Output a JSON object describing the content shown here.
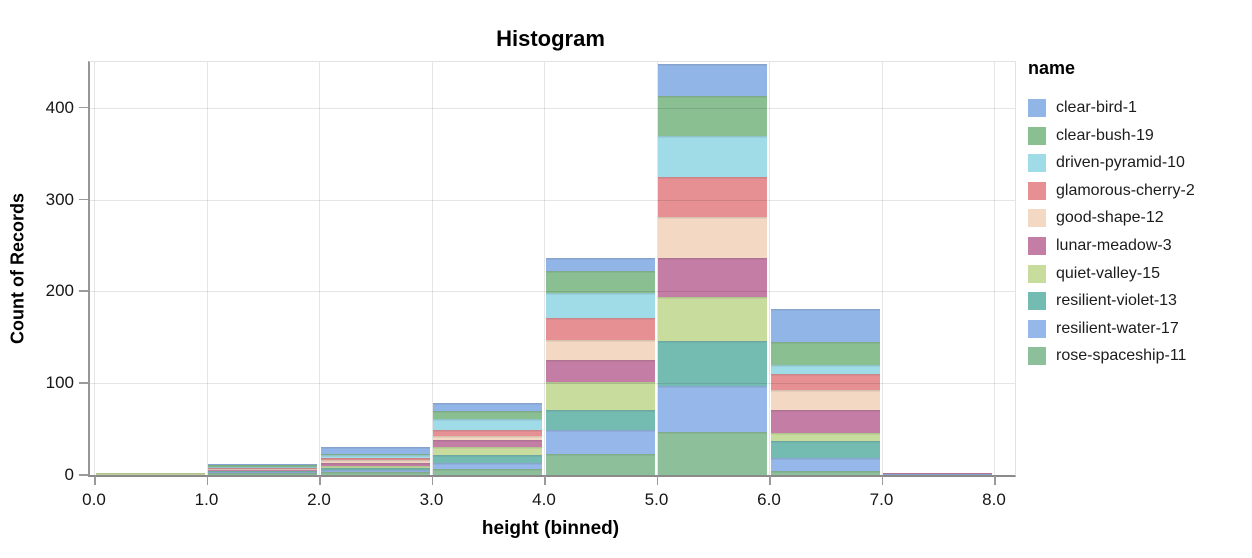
{
  "title": "Histogram",
  "axes": {
    "x": {
      "title": "height (binned)",
      "tick_labels": [
        "0.0",
        "1.0",
        "2.0",
        "3.0",
        "4.0",
        "5.0",
        "6.0",
        "7.0",
        "8.0"
      ],
      "tick_values": [
        0,
        1,
        2,
        3,
        4,
        5,
        6,
        7,
        8
      ]
    },
    "y": {
      "title": "Count of Records",
      "tick_labels": [
        "0",
        "100",
        "200",
        "300",
        "400"
      ],
      "tick_values": [
        0,
        100,
        200,
        300,
        400
      ]
    }
  },
  "legend": {
    "title": "name",
    "items": [
      {
        "label": "clear-bird-1",
        "color": "#92b5e8"
      },
      {
        "label": "clear-bush-19",
        "color": "#8abf92"
      },
      {
        "label": "driven-pyramid-10",
        "color": "#a0dce8"
      },
      {
        "label": "glamorous-cherry-2",
        "color": "#e69094"
      },
      {
        "label": "good-shape-12",
        "color": "#f3d9c4"
      },
      {
        "label": "lunar-meadow-3",
        "color": "#c47da4"
      },
      {
        "label": "quiet-valley-15",
        "color": "#c8dd9d"
      },
      {
        "label": "resilient-violet-13",
        "color": "#74bcb2"
      },
      {
        "label": "resilient-water-17",
        "color": "#96b7e9"
      },
      {
        "label": "rose-spaceship-11",
        "color": "#8dc09a"
      }
    ]
  },
  "chart_data": {
    "type": "bar",
    "subtype": "stacked-histogram",
    "title": "Histogram",
    "xlabel": "height (binned)",
    "ylabel": "Count of Records",
    "bin_edges": [
      0,
      1,
      2,
      3,
      4,
      5,
      6,
      7,
      8
    ],
    "bin_labels": [
      "0-1",
      "1-2",
      "2-3",
      "3-4",
      "4-5",
      "5-6",
      "6-7",
      "7-8"
    ],
    "xlim": [
      0,
      8.2
    ],
    "ylim": [
      0,
      450
    ],
    "x_ticks": [
      0,
      1,
      2,
      3,
      4,
      5,
      6,
      7,
      8
    ],
    "y_ticks": [
      0,
      100,
      200,
      300,
      400
    ],
    "grid": true,
    "legend_position": "right",
    "stack_order": "reverse-legend (first legend entry on top)",
    "series": [
      {
        "name": "clear-bird-1",
        "color": "#92b5e8",
        "values": [
          0,
          1,
          8,
          9,
          15,
          35,
          36,
          0
        ]
      },
      {
        "name": "clear-bush-19",
        "color": "#8abf92",
        "values": [
          0,
          2,
          1,
          9,
          24,
          44,
          25,
          0
        ]
      },
      {
        "name": "driven-pyramid-10",
        "color": "#a0dce8",
        "values": [
          0,
          1,
          3,
          12,
          27,
          44,
          10,
          0
        ]
      },
      {
        "name": "glamorous-cherry-2",
        "color": "#e69094",
        "values": [
          0,
          1,
          3,
          6,
          24,
          44,
          17,
          0
        ]
      },
      {
        "name": "good-shape-12",
        "color": "#f3d9c4",
        "values": [
          0,
          1,
          3,
          5,
          22,
          44,
          22,
          0
        ]
      },
      {
        "name": "lunar-meadow-3",
        "color": "#c47da4",
        "values": [
          0,
          1,
          3,
          8,
          24,
          43,
          25,
          1
        ]
      },
      {
        "name": "quiet-valley-15",
        "color": "#c8dd9d",
        "values": [
          2,
          1,
          2,
          8,
          30,
          48,
          9,
          0
        ]
      },
      {
        "name": "resilient-violet-13",
        "color": "#74bcb2",
        "values": [
          0,
          1,
          3,
          9,
          22,
          49,
          18,
          0
        ]
      },
      {
        "name": "resilient-water-17",
        "color": "#96b7e9",
        "values": [
          0,
          1,
          2,
          6,
          26,
          50,
          15,
          1
        ]
      },
      {
        "name": "rose-spaceship-11",
        "color": "#8dc09a",
        "values": [
          0,
          2,
          3,
          7,
          23,
          47,
          4,
          0
        ]
      }
    ],
    "bin_totals": [
      2,
      12,
      31,
      79,
      237,
      448,
      181,
      2
    ]
  }
}
